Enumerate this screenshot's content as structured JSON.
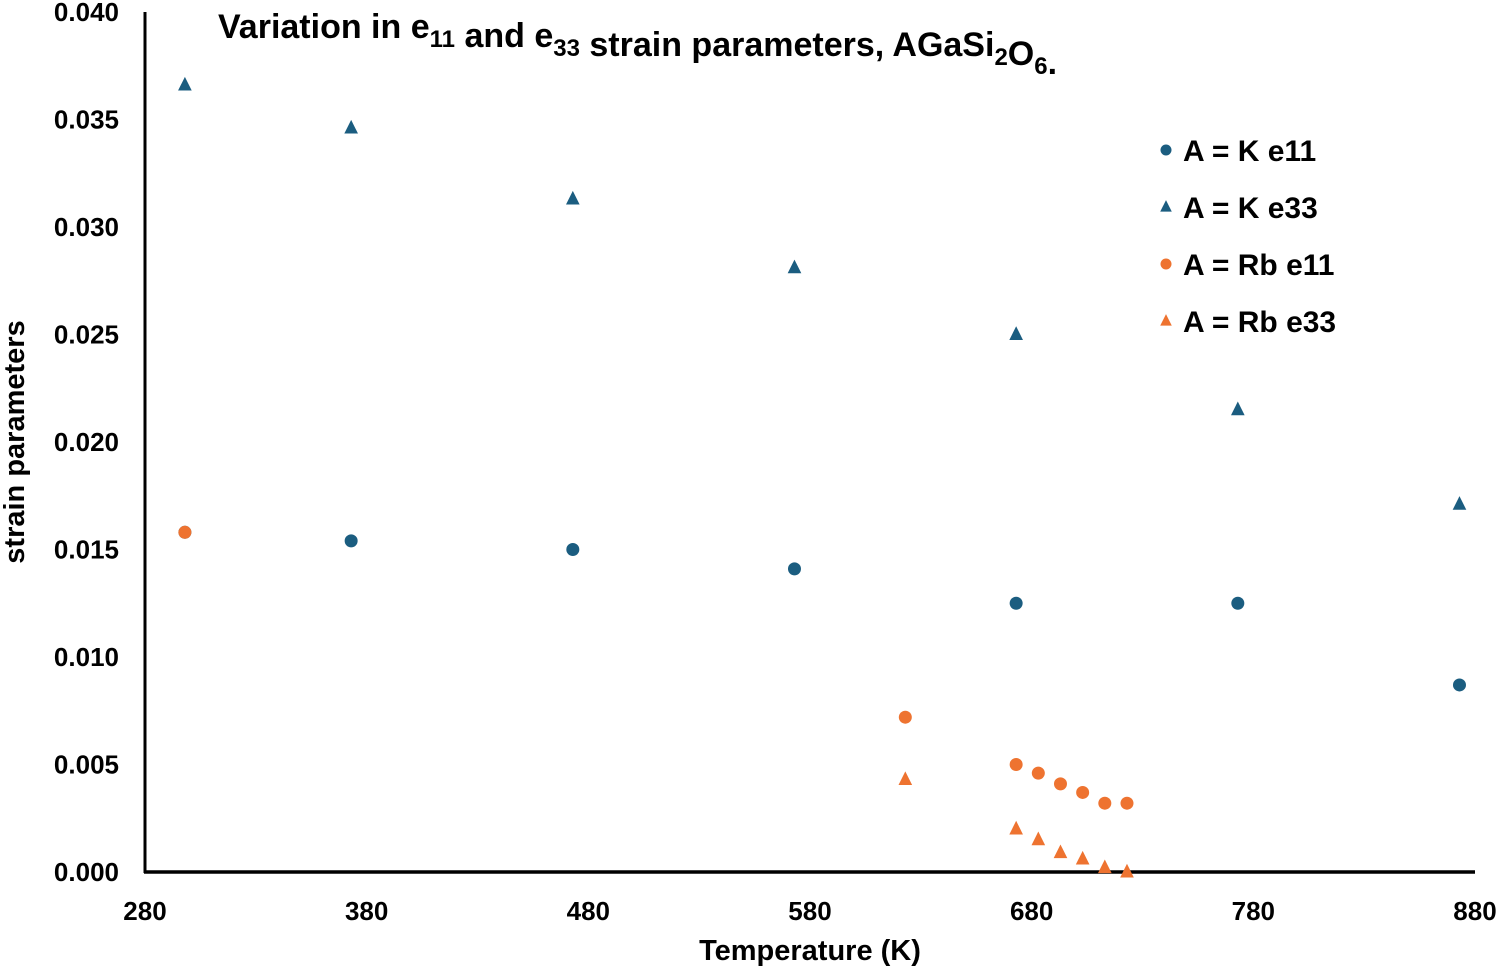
{
  "chart_data": {
    "type": "scatter",
    "title": "Variation in e11 and e33 strain parameters, AGaSi2O6.",
    "title_parts": [
      {
        "text": "Variation in e",
        "sub": false
      },
      {
        "text": "11",
        "sub": true
      },
      {
        "text": " and e",
        "sub": false
      },
      {
        "text": "33",
        "sub": true
      },
      {
        "text": " strain parameters, AGaSi",
        "sub": false
      },
      {
        "text": "2",
        "sub": true
      },
      {
        "text": "O",
        "sub": false
      },
      {
        "text": "6",
        "sub": true
      },
      {
        "text": ".",
        "sub": false
      }
    ],
    "xlabel": "Temperature (K)",
    "ylabel": "strain parameters",
    "xlim": [
      280,
      880
    ],
    "ylim": [
      0.0,
      0.04
    ],
    "xticks": [
      280,
      380,
      480,
      580,
      680,
      780,
      880
    ],
    "xtick_labels": [
      "280",
      "380",
      "480",
      "580",
      "680",
      "780",
      "880"
    ],
    "yticks": [
      0.0,
      0.005,
      0.01,
      0.015,
      0.02,
      0.025,
      0.03,
      0.035,
      0.04
    ],
    "ytick_labels": [
      "0.000",
      "0.005",
      "0.010",
      "0.015",
      "0.020",
      "0.025",
      "0.030",
      "0.035",
      "0.040"
    ],
    "grid": false,
    "legend_position": "upper right",
    "series": [
      {
        "name": "A = K e11",
        "marker": "circle",
        "color": "#1b5d80",
        "x": [
          298,
          373,
          473,
          573,
          673,
          773,
          873
        ],
        "y": [
          0.0158,
          0.0154,
          0.015,
          0.0141,
          0.0125,
          0.0125,
          0.0087
        ]
      },
      {
        "name": "A = K e33",
        "marker": "triangle",
        "color": "#1b5d80",
        "x": [
          298,
          373,
          473,
          573,
          673,
          773,
          873
        ],
        "y": [
          0.0366,
          0.0346,
          0.0313,
          0.0281,
          0.025,
          0.0215,
          0.0171
        ]
      },
      {
        "name": "A = Rb e11",
        "marker": "circle",
        "color": "#ee7330",
        "x": [
          298,
          623,
          673,
          683,
          693,
          703,
          713,
          723
        ],
        "y": [
          0.0158,
          0.0072,
          0.005,
          0.0046,
          0.0041,
          0.0037,
          0.0032,
          0.0032
        ]
      },
      {
        "name": "A = Rb e33",
        "marker": "triangle",
        "color": "#ee7330",
        "x": [
          623,
          673,
          683,
          693,
          703,
          713,
          723
        ],
        "y": [
          0.0043,
          0.002,
          0.0015,
          0.0009,
          0.0006,
          0.0002,
          0.0
        ]
      }
    ]
  }
}
